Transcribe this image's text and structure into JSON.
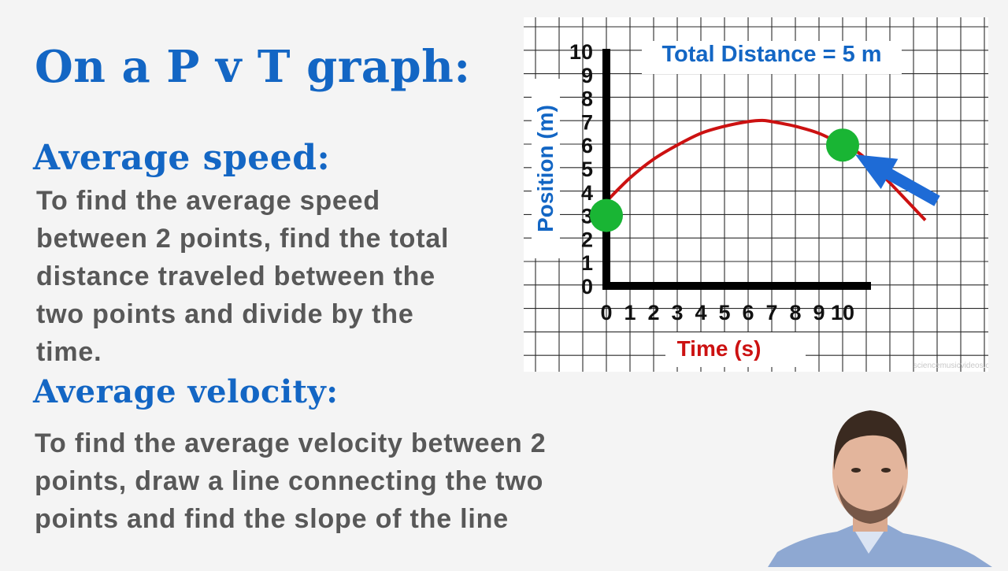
{
  "slide": {
    "title": "On a P v T graph:",
    "avg_speed_heading": "Average speed:",
    "avg_speed_text": "To find the average speed between 2 points, find the total distance traveled between the two points and divide by the time.",
    "avg_velocity_heading": "Average velocity:",
    "avg_velocity_text": "To find the average velocity between 2 points, draw a line connecting the two points and find the slope of the line"
  },
  "graph": {
    "annotation": "Total Distance = 5 m",
    "xlabel": "Time (s)",
    "ylabel": "Position (m)",
    "watermark": "sciencemusicvideos.com",
    "accent_color": "#1366c4",
    "curve_color": "#cc1111",
    "point_color": "#19b534",
    "arrow_color": "#1e6bd6",
    "arrow_icon": "arrow-pointing-to-end-point"
  },
  "chart_data": {
    "type": "line",
    "title": "",
    "xlabel": "Time (s)",
    "ylabel": "Position (m)",
    "xlim": [
      0,
      11
    ],
    "ylim": [
      0,
      10
    ],
    "x_ticks": [
      "0",
      "1",
      "2",
      "3",
      "4",
      "5",
      "6",
      "7",
      "8",
      "9",
      "10"
    ],
    "y_ticks": [
      "0",
      "1",
      "2",
      "3",
      "4",
      "5",
      "6",
      "7",
      "8",
      "9",
      "10"
    ],
    "grid": true,
    "series": [
      {
        "x": [
          0,
          1,
          2,
          3,
          4,
          5,
          6,
          6.6,
          7,
          8,
          9,
          10,
          11,
          13.5
        ],
        "y": [
          3.6,
          4.6,
          5.4,
          6.0,
          6.5,
          6.8,
          7.0,
          7.05,
          7.0,
          6.8,
          6.5,
          6.0,
          5.4,
          2.8
        ]
      }
    ],
    "points": [
      {
        "x": 0,
        "y": 3
      },
      {
        "x": 10,
        "y": 6
      }
    ]
  }
}
